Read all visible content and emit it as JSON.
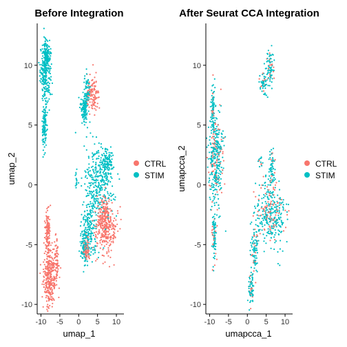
{
  "chart_data": [
    {
      "type": "scatter",
      "title": "Before Integration",
      "xlabel": "umap_1",
      "ylabel": "umap_2",
      "xlim": [
        -11,
        12
      ],
      "ylim": [
        -10.8,
        13.5
      ],
      "xticks": [
        -10,
        -5,
        0,
        5,
        10
      ],
      "xtick_labels": [
        "-10",
        "-5",
        "0",
        "5",
        "10"
      ],
      "yticks": [
        -10,
        -5,
        0,
        5,
        10
      ],
      "ytick_labels": [
        "-10",
        "-5",
        "0",
        "5",
        "10"
      ],
      "grid": false,
      "legend": {
        "position": "right",
        "entries": [
          {
            "label": "CTRL",
            "color": "#F8766D"
          },
          {
            "label": "STIM",
            "color": "#00BFC4"
          }
        ]
      },
      "clusters": [
        {
          "series": "STIM",
          "center": [
            -8.8,
            9.5
          ],
          "spread": [
            0.7,
            1.2
          ],
          "weight": 1.0
        },
        {
          "series": "STIM",
          "center": [
            -8.4,
            11.0
          ],
          "spread": [
            0.4,
            0.5
          ],
          "weight": 0.35
        },
        {
          "series": "STIM",
          "center": [
            -9.1,
            4.8
          ],
          "spread": [
            0.3,
            1.1
          ],
          "weight": 0.45
        },
        {
          "series": "STIM",
          "center": [
            1.5,
            6.5
          ],
          "spread": [
            0.5,
            0.6
          ],
          "weight": 0.45
        },
        {
          "series": "STIM",
          "center": [
            2.3,
            8.0
          ],
          "spread": [
            0.4,
            0.6
          ],
          "weight": 0.25
        },
        {
          "series": "CTRL",
          "center": [
            3.8,
            7.5
          ],
          "spread": [
            0.9,
            0.8
          ],
          "weight": 0.45
        },
        {
          "series": "STIM",
          "center": [
            5.5,
            0.4
          ],
          "spread": [
            2.0,
            1.5
          ],
          "weight": 1.3
        },
        {
          "series": "STIM",
          "center": [
            7.8,
            2.0
          ],
          "spread": [
            0.7,
            0.5
          ],
          "weight": 0.3
        },
        {
          "series": "STIM",
          "center": [
            3.0,
            -3.5
          ],
          "spread": [
            1.0,
            1.3
          ],
          "weight": 0.7
        },
        {
          "series": "STIM",
          "center": [
            1.5,
            -5.0
          ],
          "spread": [
            0.5,
            0.7
          ],
          "weight": 0.35
        },
        {
          "series": "CTRL",
          "center": [
            7.3,
            -3.8
          ],
          "spread": [
            1.5,
            1.0
          ],
          "weight": 1.0
        },
        {
          "series": "CTRL",
          "center": [
            6.8,
            -2.2
          ],
          "spread": [
            0.8,
            0.7
          ],
          "weight": 0.4
        },
        {
          "series": "CTRL",
          "center": [
            2.0,
            -5.5
          ],
          "spread": [
            0.5,
            0.5
          ],
          "weight": 0.25
        },
        {
          "series": "CTRL",
          "center": [
            -7.8,
            -7.8
          ],
          "spread": [
            0.8,
            1.2
          ],
          "weight": 1.1
        },
        {
          "series": "CTRL",
          "center": [
            -8.2,
            -4.2
          ],
          "spread": [
            0.35,
            1.0
          ],
          "weight": 0.5
        },
        {
          "series": "CTRL",
          "center": [
            -6.0,
            -6.5
          ],
          "spread": [
            0.5,
            1.0
          ],
          "weight": 0.3
        },
        {
          "series": "STIM",
          "center": [
            -0.6,
            0.3
          ],
          "spread": [
            0.15,
            0.35
          ],
          "weight": 0.05
        }
      ],
      "series": [
        {
          "name": "CTRL",
          "color": "#F8766D"
        },
        {
          "name": "STIM",
          "color": "#00BFC4"
        }
      ]
    },
    {
      "type": "scatter",
      "title": "After Seurat CCA Integration",
      "xlabel": "umapcca_1",
      "ylabel": "umapcca_2",
      "xlim": [
        -11,
        12
      ],
      "ylim": [
        -10.8,
        13.5
      ],
      "xticks": [
        -10,
        -5,
        0,
        5,
        10
      ],
      "xtick_labels": [
        "-10",
        "-5",
        "0",
        "5",
        "10"
      ],
      "yticks": [
        -10,
        -5,
        0,
        5,
        10
      ],
      "ytick_labels": [
        "-10",
        "-5",
        "0",
        "5",
        "10"
      ],
      "grid": false,
      "legend": {
        "position": "right",
        "entries": [
          {
            "label": "CTRL",
            "color": "#F8766D"
          },
          {
            "label": "STIM",
            "color": "#00BFC4"
          }
        ]
      },
      "clusters": [
        {
          "series": "MIX",
          "center": [
            -8.3,
            2.2
          ],
          "spread": [
            1.0,
            2.0
          ],
          "weight": 1.3
        },
        {
          "series": "MIX",
          "center": [
            -9.1,
            6.2
          ],
          "spread": [
            0.25,
            1.2
          ],
          "weight": 0.3
        },
        {
          "series": "MIX",
          "center": [
            -8.8,
            -4.5
          ],
          "spread": [
            0.3,
            1.2
          ],
          "weight": 0.3
        },
        {
          "series": "MIX",
          "center": [
            6.0,
            9.8
          ],
          "spread": [
            0.5,
            0.7
          ],
          "weight": 0.3
        },
        {
          "series": "MIX",
          "center": [
            4.5,
            8.5
          ],
          "spread": [
            0.6,
            0.5
          ],
          "weight": 0.2
        },
        {
          "series": "MIX",
          "center": [
            6.0,
            -2.5
          ],
          "spread": [
            2.0,
            1.3
          ],
          "weight": 1.3
        },
        {
          "series": "MIX",
          "center": [
            6.5,
            1.0
          ],
          "spread": [
            0.4,
            1.0
          ],
          "weight": 0.3
        },
        {
          "series": "MIX",
          "center": [
            2.0,
            -5.5
          ],
          "spread": [
            0.5,
            1.0
          ],
          "weight": 0.3
        },
        {
          "series": "MIX",
          "center": [
            1.0,
            -8.8
          ],
          "spread": [
            0.35,
            0.7
          ],
          "weight": 0.25
        },
        {
          "series": "MIX",
          "center": [
            3.5,
            2.0
          ],
          "spread": [
            0.3,
            0.4
          ],
          "weight": 0.05
        }
      ],
      "series": [
        {
          "name": "CTRL",
          "color": "#F8766D"
        },
        {
          "name": "STIM",
          "color": "#00BFC4"
        }
      ]
    }
  ]
}
